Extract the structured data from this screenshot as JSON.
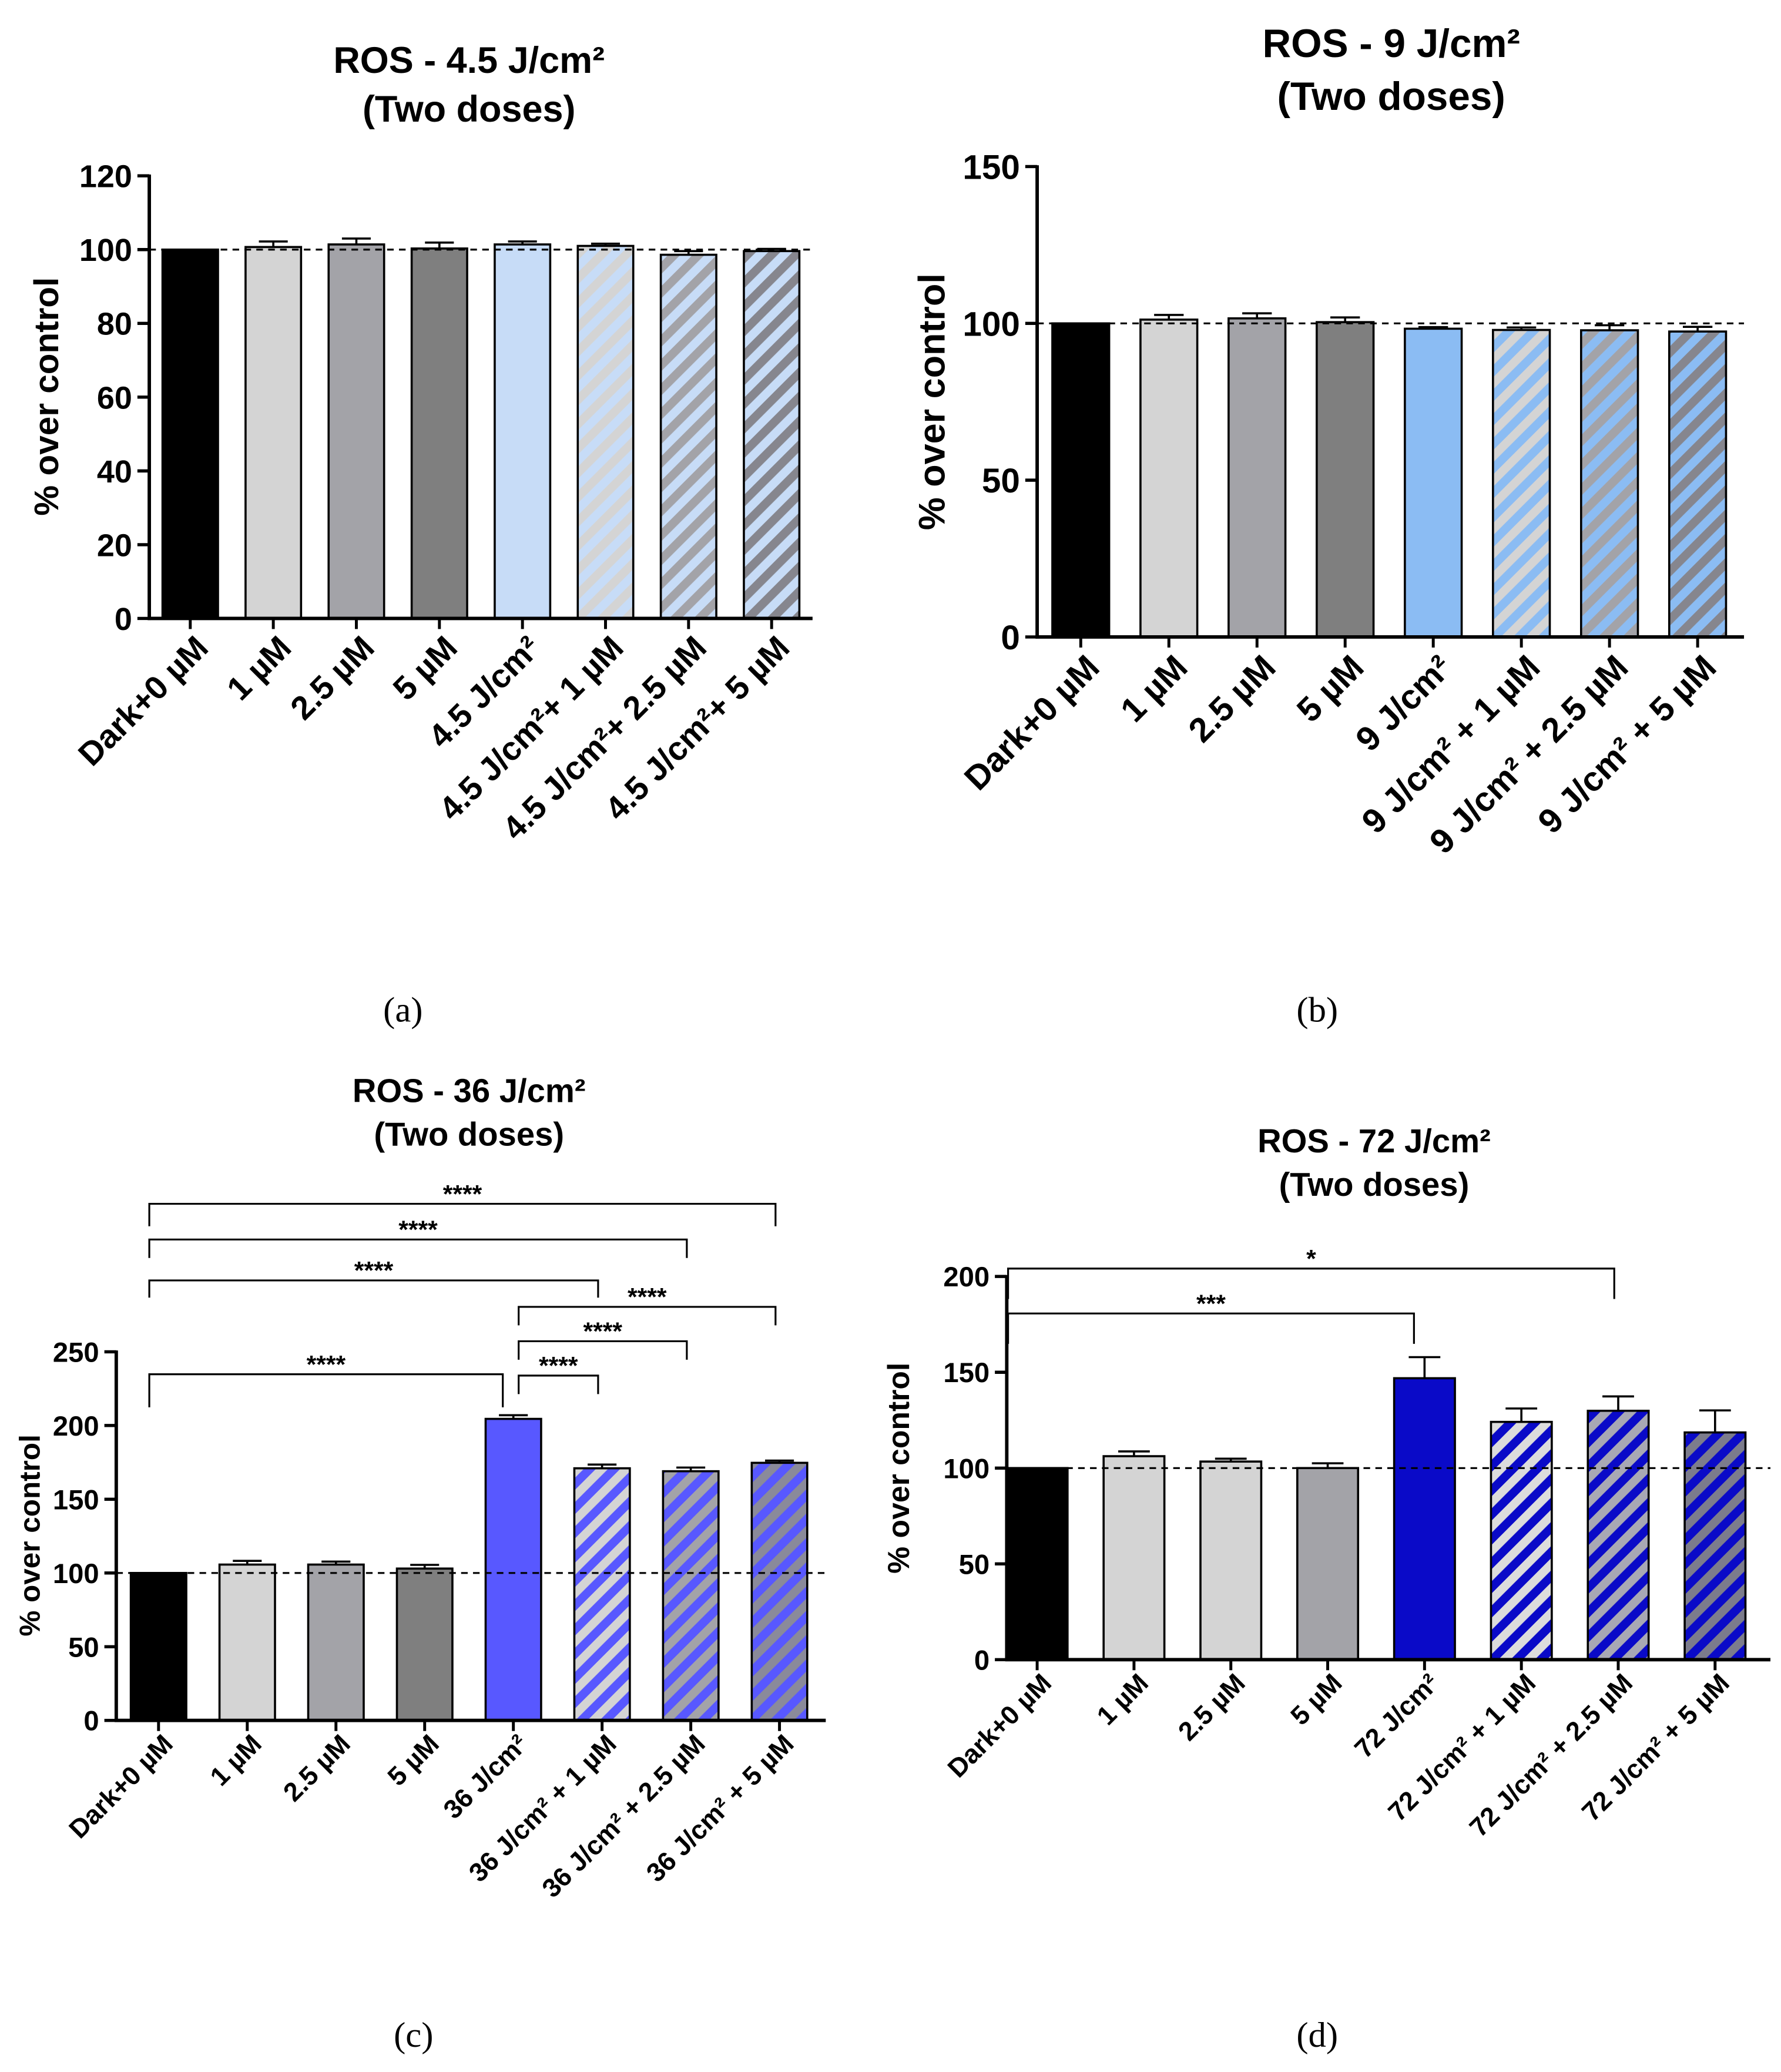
{
  "chart_data": [
    {
      "type": "bar",
      "title": "ROS - 4.5 J/cm²",
      "subtitle": "(Two doses)",
      "ylabel": "% over control",
      "caption": "(a)",
      "ylim": [
        0,
        120
      ],
      "yticks": [
        0,
        20,
        40,
        60,
        80,
        100,
        120
      ],
      "reference_line": 100,
      "categories": [
        "Dark+0 µM",
        "1 µM",
        "2.5 µM",
        "5 µM",
        "4.5 J/cm²",
        "4.5 J/cm²+ 1 µM",
        "4.5 J/cm²+ 2.5 µM",
        "4.5 J/cm²+ 5 µM"
      ],
      "values": [
        100,
        100.7,
        101.4,
        100.3,
        101.4,
        101.0,
        98.6,
        99.6
      ],
      "errors": [
        0,
        1.5,
        1.6,
        1.6,
        0.8,
        0.6,
        1.0,
        0.6
      ],
      "colors": [
        "#000000",
        "#d4d4d4",
        "#a3a3a8",
        "#7f7f7f",
        "#c7dcf7",
        "#c7dcf7",
        "#c7dcf7",
        "#c7dcf7"
      ],
      "hatch_colors": [
        null,
        null,
        null,
        null,
        null,
        "#d4d4d4",
        "#a3a3a8",
        "#86868e"
      ],
      "significance": []
    },
    {
      "type": "bar",
      "title": "ROS - 9 J/cm²",
      "subtitle": "(Two doses)",
      "ylabel": "% over control",
      "caption": "(b)",
      "ylim": [
        0,
        150
      ],
      "yticks": [
        0,
        50,
        100,
        150
      ],
      "reference_line": 100,
      "categories": [
        "Dark+0 µM",
        "1 µM",
        "2.5 µM",
        "5 µM",
        "9 J/cm²",
        "9 J/cm² + 1 µM",
        "9 J/cm² + 2.5 µM",
        "9 J/cm² + 5 µM"
      ],
      "values": [
        100,
        101.2,
        101.6,
        100.4,
        98.3,
        97.9,
        97.8,
        97.4
      ],
      "errors": [
        0,
        1.5,
        1.6,
        1.5,
        0.5,
        0.8,
        1.6,
        1.5
      ],
      "colors": [
        "#000000",
        "#d4d4d4",
        "#a3a3a8",
        "#7f7f7f",
        "#8bbcf3",
        "#8bbcf3",
        "#8bbcf3",
        "#8bbcf3"
      ],
      "hatch_colors": [
        null,
        null,
        null,
        null,
        null,
        "#d4d4d4",
        "#a3a3a8",
        "#86868e"
      ],
      "significance": []
    },
    {
      "type": "bar",
      "title": "ROS - 36 J/cm²",
      "subtitle": "(Two doses)",
      "ylabel": "% over control",
      "caption": "(c)",
      "ylim": [
        0,
        250
      ],
      "yticks": [
        0,
        50,
        100,
        150,
        200,
        250
      ],
      "reference_line": 100,
      "categories": [
        "Dark+0 µM",
        "1 µM",
        "2.5 µM",
        "5 µM",
        "36 J/cm²",
        "36 J/cm² + 1 µM",
        "36 J/cm² + 2.5 µM",
        "36 J/cm² + 5 µM"
      ],
      "values": [
        100,
        105.7,
        105.7,
        103.0,
        204.5,
        171.0,
        169.0,
        174.7
      ],
      "errors": [
        0,
        2.5,
        2.0,
        2.5,
        2.5,
        2.5,
        2.5,
        1.5
      ],
      "colors": [
        "#000000",
        "#d4d4d4",
        "#a3a3a8",
        "#7f7f7f",
        "#5858ff",
        "#5858ff",
        "#5858ff",
        "#5858ff"
      ],
      "hatch_colors": [
        null,
        null,
        null,
        null,
        null,
        "#d4d4d4",
        "#a3a3a8",
        "#8a8a9a"
      ],
      "significance": [
        {
          "from": 0,
          "to": 4,
          "label": "****"
        },
        {
          "from": 4,
          "to": 5,
          "label": "****"
        },
        {
          "from": 4,
          "to": 6,
          "label": "****"
        },
        {
          "from": 4,
          "to": 7,
          "label": "****"
        },
        {
          "from": 0,
          "to": 5,
          "label": "****"
        },
        {
          "from": 0,
          "to": 6,
          "label": "****"
        },
        {
          "from": 0,
          "to": 7,
          "label": "****"
        }
      ]
    },
    {
      "type": "bar",
      "title": "ROS - 72 J/cm²",
      "subtitle": "(Two doses)",
      "ylabel": "% over control",
      "caption": "(d)",
      "ylim": [
        0,
        200
      ],
      "yticks": [
        0,
        50,
        100,
        150,
        200
      ],
      "reference_line": 100,
      "categories": [
        "Dark+0 µM",
        "1 µM",
        "2.5 µM",
        "5 µM",
        "72 J/cm²",
        "72 J/cm² + 1 µM",
        "72 J/cm² + 2.5 µM",
        "72 J/cm² + 5 µM"
      ],
      "values": [
        100,
        106.2,
        103.4,
        100.0,
        146.9,
        124.1,
        129.9,
        118.6
      ],
      "errors": [
        0,
        2.5,
        1.5,
        2.5,
        11.0,
        7.0,
        7.5,
        11.5
      ],
      "colors": [
        "#000000",
        "#d4d4d4",
        "#d4d4d4",
        "#a3a3a8",
        "#0a0ac8",
        "#0a0ac8",
        "#0a0ac8",
        "#0a0ac8"
      ],
      "hatch_colors": [
        null,
        null,
        null,
        null,
        null,
        "#dcdcdc",
        "#a8a8b4",
        "#7c7c8c"
      ],
      "significance": [
        {
          "from": 0,
          "to": 4,
          "label": "***"
        },
        {
          "from": 0,
          "to": 6,
          "label": "*"
        }
      ]
    }
  ]
}
